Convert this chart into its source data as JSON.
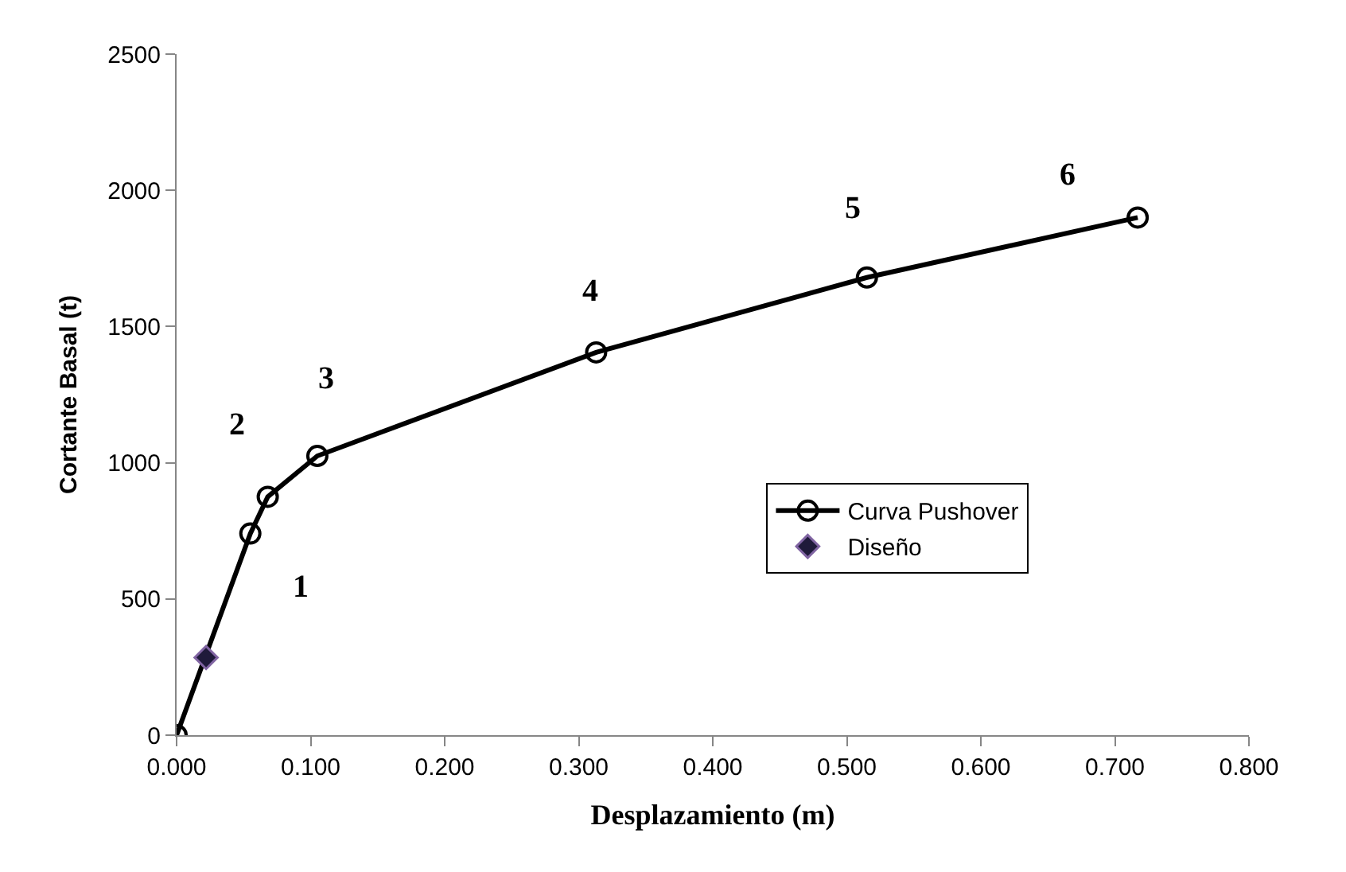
{
  "chart_data": {
    "type": "line",
    "xlabel": "Desplazamiento (m)",
    "ylabel": "Cortante Basal (t)",
    "xlim": [
      0,
      0.8
    ],
    "xticks": [
      {
        "value": 0,
        "label": "0.000"
      },
      {
        "value": 0.1,
        "label": "0.100"
      },
      {
        "value": 0.2,
        "label": "0.200"
      },
      {
        "value": 0.3,
        "label": "0.300"
      },
      {
        "value": 0.4,
        "label": "0.400"
      },
      {
        "value": 0.5,
        "label": "0.500"
      },
      {
        "value": 0.6,
        "label": "0.600"
      },
      {
        "value": 0.7,
        "label": "0.700"
      },
      {
        "value": 0.8,
        "label": "0.800"
      }
    ],
    "ylim": [
      0,
      2500
    ],
    "yticks": [
      0,
      500,
      1000,
      1500,
      2000,
      2500
    ],
    "legend": "right",
    "series": [
      {
        "name": "Curva Pushover",
        "marker": "circle",
        "line_style": "solid",
        "color": "#000000",
        "x": [
          0,
          0.055,
          0.068,
          0.105,
          0.313,
          0.515,
          0.717
        ],
        "values": [
          0,
          740,
          875,
          1025,
          1405,
          1680,
          1900
        ]
      },
      {
        "name": "Diseño",
        "type": "scatter",
        "marker": "diamond",
        "color": "#1f1a3a",
        "x": [
          0.022
        ],
        "values": [
          285
        ]
      }
    ],
    "annotations": [
      "1",
      "2",
      "3",
      "4",
      "5",
      "6"
    ]
  }
}
